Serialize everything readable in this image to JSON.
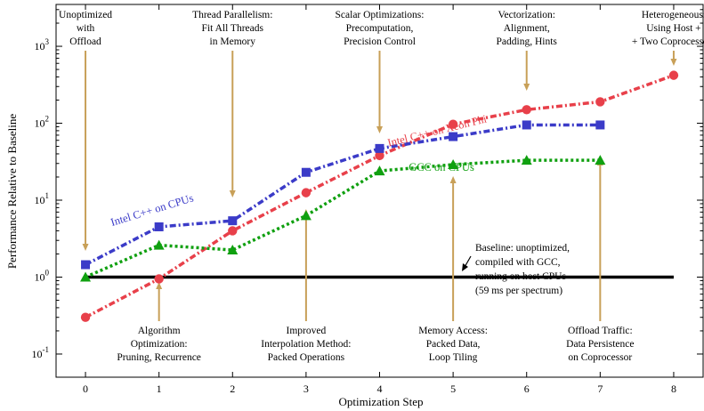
{
  "chart_data": {
    "type": "line",
    "xlabel": "Optimization Step",
    "ylabel": "Performance Relative to Baseline",
    "x": [
      0,
      1,
      2,
      3,
      4,
      5,
      6,
      7,
      8
    ],
    "xlim": [
      -0.4,
      8.4
    ],
    "ylim": [
      0.05,
      3500
    ],
    "yscale": "log",
    "x_ticks": [
      "0",
      "1",
      "2",
      "3",
      "4",
      "5",
      "6",
      "7",
      "8"
    ],
    "y_ticks": [
      {
        "value": 0.1,
        "base": "10",
        "exp": "-1"
      },
      {
        "value": 1,
        "base": "10",
        "exp": "0"
      },
      {
        "value": 10,
        "base": "10",
        "exp": "1"
      },
      {
        "value": 100,
        "base": "10",
        "exp": "2"
      },
      {
        "value": 1000,
        "base": "10",
        "exp": "3"
      }
    ],
    "series": [
      {
        "name": "Intel C++ on Xeon Phi",
        "color": "#e8404a",
        "marker": "circle",
        "x": [
          0,
          1,
          2,
          3,
          4,
          5,
          6,
          7,
          8
        ],
        "values": [
          0.3,
          0.95,
          4.0,
          12.5,
          38,
          97,
          150,
          190,
          420
        ]
      },
      {
        "name": "Intel C++ on CPUs",
        "color": "#3b3bc8",
        "marker": "square",
        "x": [
          0,
          1,
          2,
          3,
          4,
          5,
          6,
          7
        ],
        "values": [
          1.45,
          4.5,
          5.4,
          23,
          47,
          67,
          95,
          95
        ]
      },
      {
        "name": "GCC on CPUs",
        "color": "#10a010",
        "marker": "triangle",
        "x": [
          0,
          1,
          2,
          3,
          4,
          5,
          6,
          7
        ],
        "values": [
          1.0,
          2.6,
          2.25,
          6.3,
          24,
          29,
          33,
          33
        ]
      }
    ],
    "baseline": {
      "value": 1.0,
      "x_from": 0,
      "x_to": 8
    },
    "annotations_top": [
      {
        "step": 0,
        "lines": [
          "Unoptimized",
          "with",
          "Offload"
        ]
      },
      {
        "step": 2,
        "lines": [
          "Thread Parallelism:",
          "Fit All Threads",
          "in Memory"
        ]
      },
      {
        "step": 4,
        "lines": [
          "Scalar Optimizations:",
          "Precomputation,",
          "Precision Control"
        ]
      },
      {
        "step": 6,
        "lines": [
          "Vectorization:",
          "Alignment,",
          "Padding, Hints"
        ]
      },
      {
        "step": 8,
        "lines": [
          "Heterogeneous:",
          "Using Host +",
          "+ Two Coprocessors"
        ]
      }
    ],
    "annotations_bottom": [
      {
        "step": 1,
        "lines": [
          "Algorithm",
          "Optimization:",
          "Pruning, Recurrence"
        ]
      },
      {
        "step": 3,
        "lines": [
          "Improved",
          "Interpolation Method:",
          "Packed Operations"
        ]
      },
      {
        "step": 5,
        "lines": [
          "Memory Access:",
          "Packed Data,",
          "Loop Tiling"
        ]
      },
      {
        "step": 7,
        "lines": [
          "Offload Traffic:",
          "Data Persistence",
          "on Coprocessor"
        ]
      }
    ],
    "baseline_note": [
      "Baseline: unoptimized,",
      "compiled with GCC,",
      "running on host CPUs",
      "(59 ms per spectrum)"
    ],
    "arrow_color": "#c8a058",
    "grid": false
  }
}
